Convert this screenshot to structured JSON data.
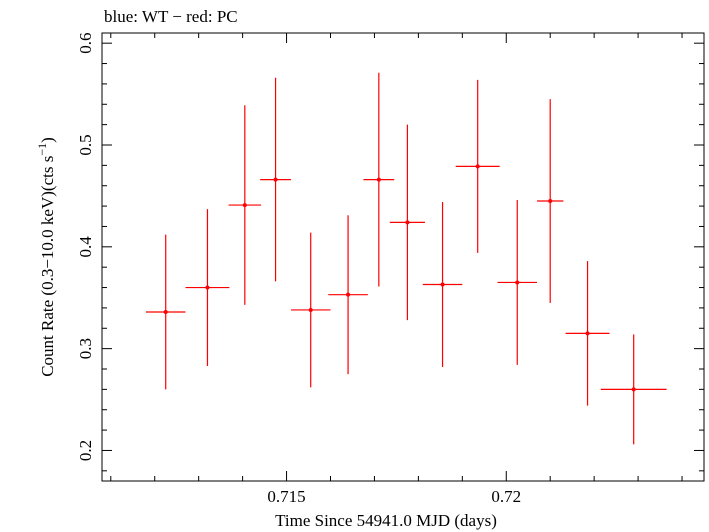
{
  "chart_data": {
    "type": "scatter",
    "title": "blue: WT − red: PC",
    "xlabel": "Time Since 54941.0 MJD (days)",
    "ylabel_main": "Count Rate (0.3−10.0 keV)(cts s",
    "ylabel_sup": "−1",
    "ylabel_end": ")",
    "xlim": [
      0.7108,
      0.7245
    ],
    "ylim": [
      0.17,
      0.61
    ],
    "x_ticks": [
      0.715,
      0.72
    ],
    "x_tick_labels": [
      "0.715",
      "0.72"
    ],
    "x_minor_step": 0.001,
    "y_ticks": [
      0.2,
      0.3,
      0.4,
      0.5,
      0.6
    ],
    "y_tick_labels": [
      "0.2",
      "0.3",
      "0.4",
      "0.5",
      "0.6"
    ],
    "y_minor_step": 0.02,
    "grid": false,
    "series": [
      {
        "color": "#ff0000",
        "points": [
          {
            "x": 0.71225,
            "xerr": 0.00045,
            "y": 0.336,
            "yerr": 0.076
          },
          {
            "x": 0.7132,
            "xerr": 0.0005,
            "y": 0.36,
            "yerr": 0.077
          },
          {
            "x": 0.71405,
            "xerr": 0.00037,
            "y": 0.441,
            "yerr": 0.098
          },
          {
            "x": 0.71475,
            "xerr": 0.00035,
            "y": 0.466,
            "yerr": 0.1
          },
          {
            "x": 0.71555,
            "xerr": 0.00045,
            "y": 0.338,
            "yerr": 0.076
          },
          {
            "x": 0.7164,
            "xerr": 0.00045,
            "y": 0.353,
            "yerr": 0.078
          },
          {
            "x": 0.7171,
            "xerr": 0.00035,
            "y": 0.466,
            "yerr": 0.105
          },
          {
            "x": 0.71775,
            "xerr": 0.0004,
            "y": 0.424,
            "yerr": 0.096
          },
          {
            "x": 0.71855,
            "xerr": 0.00045,
            "y": 0.363,
            "yerr": 0.081
          },
          {
            "x": 0.71935,
            "xerr": 0.0005,
            "y": 0.479,
            "yerr": 0.085
          },
          {
            "x": 0.72025,
            "xerr": 0.00045,
            "y": 0.365,
            "yerr": 0.081
          },
          {
            "x": 0.721,
            "xerr": 0.0003,
            "y": 0.445,
            "yerr": 0.1
          },
          {
            "x": 0.72185,
            "xerr": 0.0005,
            "y": 0.315,
            "yerr": 0.071
          },
          {
            "x": 0.7229,
            "xerr": 0.00075,
            "y": 0.26,
            "yerr": 0.054
          }
        ]
      }
    ]
  }
}
